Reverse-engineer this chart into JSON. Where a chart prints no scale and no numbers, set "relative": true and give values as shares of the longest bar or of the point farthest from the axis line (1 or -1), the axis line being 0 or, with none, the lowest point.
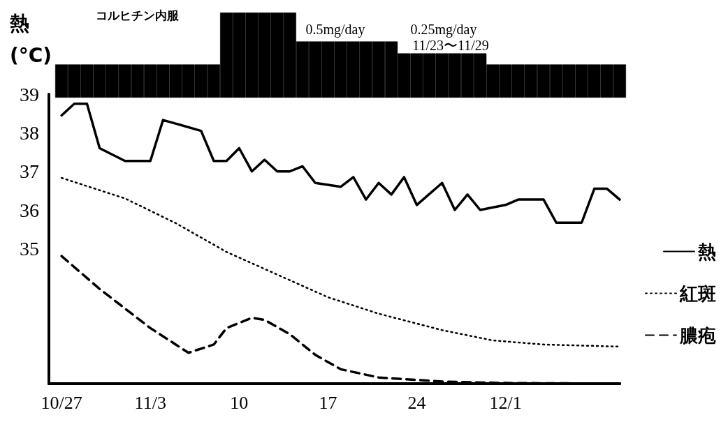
{
  "chart_data": [
    {
      "type": "bar",
      "relative": true,
      "color": "#000000",
      "categories": [
        null,
        null,
        null,
        null,
        null,
        null,
        null,
        null,
        null,
        null,
        null,
        null,
        null,
        null,
        null,
        null,
        null,
        null,
        null,
        null,
        null,
        null,
        null,
        null,
        null,
        null,
        null,
        null,
        null,
        null,
        null,
        null,
        null,
        null,
        null,
        null,
        null,
        null,
        null,
        null,
        null,
        null,
        null,
        null,
        null
      ],
      "values": [
        0.39,
        0.39,
        0.39,
        0.39,
        0.39,
        0.39,
        0.39,
        0.39,
        0.39,
        0.39,
        0.39,
        0.39,
        0.39,
        1,
        1,
        1,
        1,
        1,
        1,
        0.66,
        0.66,
        0.66,
        0.66,
        0.66,
        0.66,
        0.66,
        0.66,
        0.52,
        0.52,
        0.52,
        0.52,
        0.52,
        0.52,
        0.52,
        0.39,
        0.39,
        0.39,
        0.39,
        0.39,
        0.39,
        0.39,
        0.39,
        0.39,
        0.39,
        0.39
      ],
      "annotations": [
        "コルヒチン内服",
        "0.5mg/day",
        "0.25mg/day",
        "11/23〜11/29"
      ]
    },
    {
      "type": "line",
      "ylabel": "熱\n(°C)",
      "xlim": [
        "--10-26",
        "--12-10"
      ],
      "ylim": [
        31.5,
        39
      ],
      "yticks": [
        35,
        36,
        37,
        38,
        39
      ],
      "xticks": [
        {
          "value": "--10-27",
          "label": "10/27"
        },
        {
          "value": "--11-03",
          "label": "11/3"
        },
        {
          "value": "--11-10",
          "label": "10"
        },
        {
          "value": "--11-17",
          "label": "17"
        },
        {
          "value": "--11-24",
          "label": "24"
        },
        {
          "value": "--12-01",
          "label": "12/1"
        }
      ],
      "grid": false,
      "legend": "right",
      "marker": "none",
      "series": [
        {
          "name": "熱",
          "color": "#000000",
          "line_style": "solid",
          "x": [
            "--10-27",
            "--10-28",
            "--10-29",
            "--10-30",
            "--11-01",
            "--11-03",
            "--11-04",
            "--11-07",
            "--11-08",
            "--11-09",
            "--11-10",
            "--11-11",
            "--11-12",
            "--11-13",
            "--11-14",
            "--11-15",
            "--11-16",
            "--11-18",
            "--11-19",
            "--11-20",
            "--11-21",
            "--11-22",
            "--11-23",
            "--11-24",
            "--11-26",
            "--11-27",
            "--11-28",
            "--11-29",
            "--12-01",
            "--12-02",
            "--12-04",
            "--12-05",
            "--12-07",
            "--12-08",
            "--12-09",
            "--12-10"
          ],
          "values": [
            38.45,
            38.75,
            38.75,
            37.6,
            37.27,
            37.27,
            38.33,
            38.05,
            37.27,
            37.27,
            37.6,
            37.0,
            37.3,
            37.0,
            37.0,
            37.13,
            36.7,
            36.6,
            36.85,
            36.27,
            36.7,
            36.4,
            36.85,
            36.13,
            36.7,
            36.0,
            36.4,
            36.0,
            36.13,
            36.27,
            36.27,
            35.67,
            35.67,
            36.55,
            36.55,
            36.27
          ]
        }
      ]
    },
    {
      "type": "line",
      "relative": true,
      "xlim": [
        "--10-26",
        "--12-10"
      ],
      "tick_labels": false,
      "legend": "right",
      "marker": "none",
      "series": [
        {
          "name": "紅斑",
          "color": "#000000",
          "line_style": "dotted",
          "x": [
            "--10-27",
            "--11-01",
            "--11-05",
            "--11-09",
            "--11-13",
            "--11-17",
            "--11-21",
            "--11-26",
            "--11-30",
            "--12-04",
            "--12-10"
          ],
          "values": [
            1,
            0.9,
            0.78,
            0.64,
            0.53,
            0.42,
            0.34,
            0.26,
            0.21,
            0.19,
            0.18
          ]
        },
        {
          "name": "膿疱",
          "color": "#000000",
          "line_style": "dashed",
          "x": [
            "--10-27",
            "--10-30",
            "--11-03",
            "--11-05",
            "--11-06",
            "--11-08",
            "--11-09",
            "--11-11",
            "--11-12",
            "--11-14",
            "--11-16",
            "--11-18",
            "--11-21",
            "--11-26",
            "--12-01",
            "--12-10"
          ],
          "values": [
            0.62,
            0.46,
            0.27,
            0.19,
            0.15,
            0.19,
            0.27,
            0.32,
            0.31,
            0.24,
            0.14,
            0.07,
            0.03,
            0.01,
            0.003,
            0
          ]
        }
      ]
    }
  ]
}
